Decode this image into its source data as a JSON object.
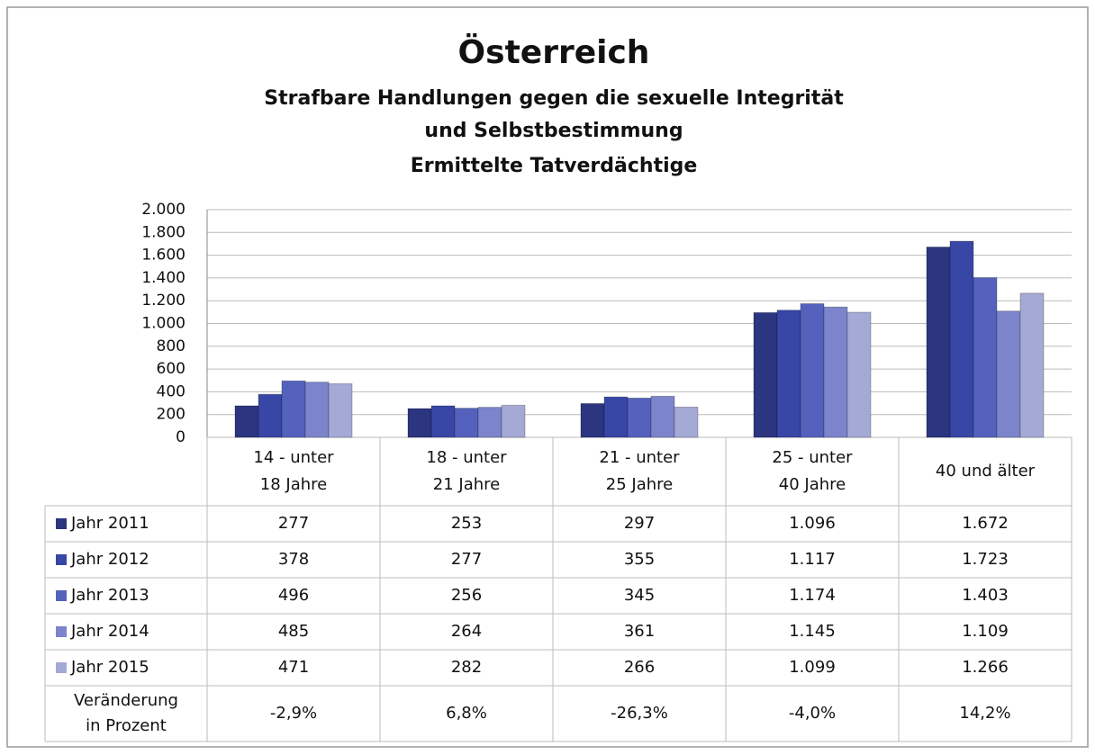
{
  "chart_data": {
    "type": "bar",
    "title": "Österreich",
    "subtitle": [
      "Strafbare Handlungen gegen die sexuelle Integrität",
      "und Selbstbestimmung",
      "Ermittelte Tatverdächtige"
    ],
    "categories": [
      [
        "14 - unter",
        "18 Jahre"
      ],
      [
        "18 - unter",
        "21 Jahre"
      ],
      [
        "21 - unter",
        "25 Jahre"
      ],
      [
        "25 - unter",
        "40 Jahre"
      ],
      [
        "40 und älter"
      ]
    ],
    "series": [
      {
        "name": "Jahr 2011",
        "color": "#2b3580",
        "values": [
          277,
          253,
          297,
          1096,
          1672
        ],
        "value_labels": [
          "277",
          "253",
          "297",
          "1.096",
          "1.672"
        ]
      },
      {
        "name": "Jahr 2012",
        "color": "#3846a6",
        "values": [
          378,
          277,
          355,
          1117,
          1723
        ],
        "value_labels": [
          "378",
          "277",
          "355",
          "1.117",
          "1.723"
        ]
      },
      {
        "name": "Jahr 2013",
        "color": "#5462bd",
        "values": [
          496,
          256,
          345,
          1174,
          1403
        ],
        "value_labels": [
          "496",
          "256",
          "345",
          "1.174",
          "1.403"
        ]
      },
      {
        "name": "Jahr 2014",
        "color": "#7c84cc",
        "values": [
          485,
          264,
          361,
          1145,
          1109
        ],
        "value_labels": [
          "485",
          "264",
          "361",
          "1.145",
          "1.109"
        ]
      },
      {
        "name": "Jahr 2015",
        "color": "#a5a9d6",
        "values": [
          471,
          282,
          266,
          1099,
          1266
        ],
        "value_labels": [
          "471",
          "282",
          "266",
          "1.099",
          "1.266"
        ]
      }
    ],
    "change": {
      "label": [
        "Veränderung",
        "in Prozent"
      ],
      "values": [
        -2.9,
        6.8,
        -26.3,
        -4.0,
        14.2
      ],
      "value_labels": [
        "-2,9%",
        "6,8%",
        "-26,3%",
        "-4,0%",
        "14,2%"
      ]
    },
    "ylim": [
      0,
      2000
    ],
    "yticks": [
      0,
      200,
      {
        "value": 400,
        "label": "400"
      },
      600,
      800,
      {
        "value": 1000,
        "label": "1.000"
      },
      {
        "value": 1200,
        "label": "1.200"
      },
      {
        "value": 1400,
        "label": "1.400"
      },
      {
        "value": 1600,
        "label": "1.600"
      },
      {
        "value": 1800,
        "label": "1.800"
      },
      {
        "value": 2000,
        "label": "2.000"
      }
    ],
    "grid": true
  }
}
